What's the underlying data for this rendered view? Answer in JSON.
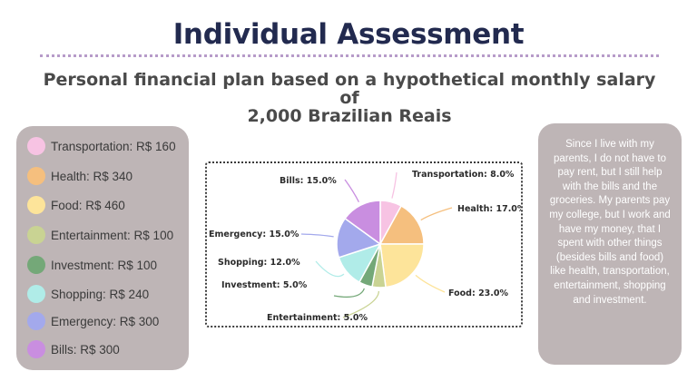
{
  "page": {
    "title": "Individual Assessment",
    "subtitle_line1": "Personal financial plan based on a hypothetical monthly salary of",
    "subtitle_line2": "2,000 Brazilian Reais"
  },
  "legend": {
    "items": [
      {
        "label": "Transportation: R$ 160",
        "color": "#f7c3e3"
      },
      {
        "label": "Health: R$ 340",
        "color": "#f5bf7e"
      },
      {
        "label": "Food: R$ 460",
        "color": "#fde49a"
      },
      {
        "label": "Entertainment: R$ 100",
        "color": "#c9d393"
      },
      {
        "label": "Investment: R$ 100",
        "color": "#74a878"
      },
      {
        "label": "Shopping: R$ 240",
        "color": "#b0ece8"
      },
      {
        "label": "Emergency: R$ 300",
        "color": "#a3a9ec"
      },
      {
        "label": "Bills: R$ 300",
        "color": "#c98ee0"
      }
    ]
  },
  "chart_data": {
    "type": "pie",
    "title": "",
    "slices": [
      {
        "label": "Transportation: 8.0%",
        "value": 8.0,
        "color": "#f7c3e3"
      },
      {
        "label": "Health: 17.0%",
        "value": 17.0,
        "color": "#f5bf7e"
      },
      {
        "label": "Food: 23.0%",
        "value": 23.0,
        "color": "#fde49a"
      },
      {
        "label": "Entertainment: 5.0%",
        "value": 5.0,
        "color": "#c9d393"
      },
      {
        "label": "Investment: 5.0%",
        "value": 5.0,
        "color": "#74a878"
      },
      {
        "label": "Shopping: 12.0%",
        "value": 12.0,
        "color": "#b0ece8"
      },
      {
        "label": "Emergency: 15.0%",
        "value": 15.0,
        "color": "#a3a9ec"
      },
      {
        "label": "Bills: 15.0%",
        "value": 15.0,
        "color": "#c98ee0"
      }
    ]
  },
  "note": {
    "text": "Since I live with my parents, I do not have to pay rent, but I still help with the bills and the groceries. My parents pay my college, but I work and have my money, that I spent with other things (besides bills and food) like health, transportation, entertainment, shopping and investment."
  }
}
